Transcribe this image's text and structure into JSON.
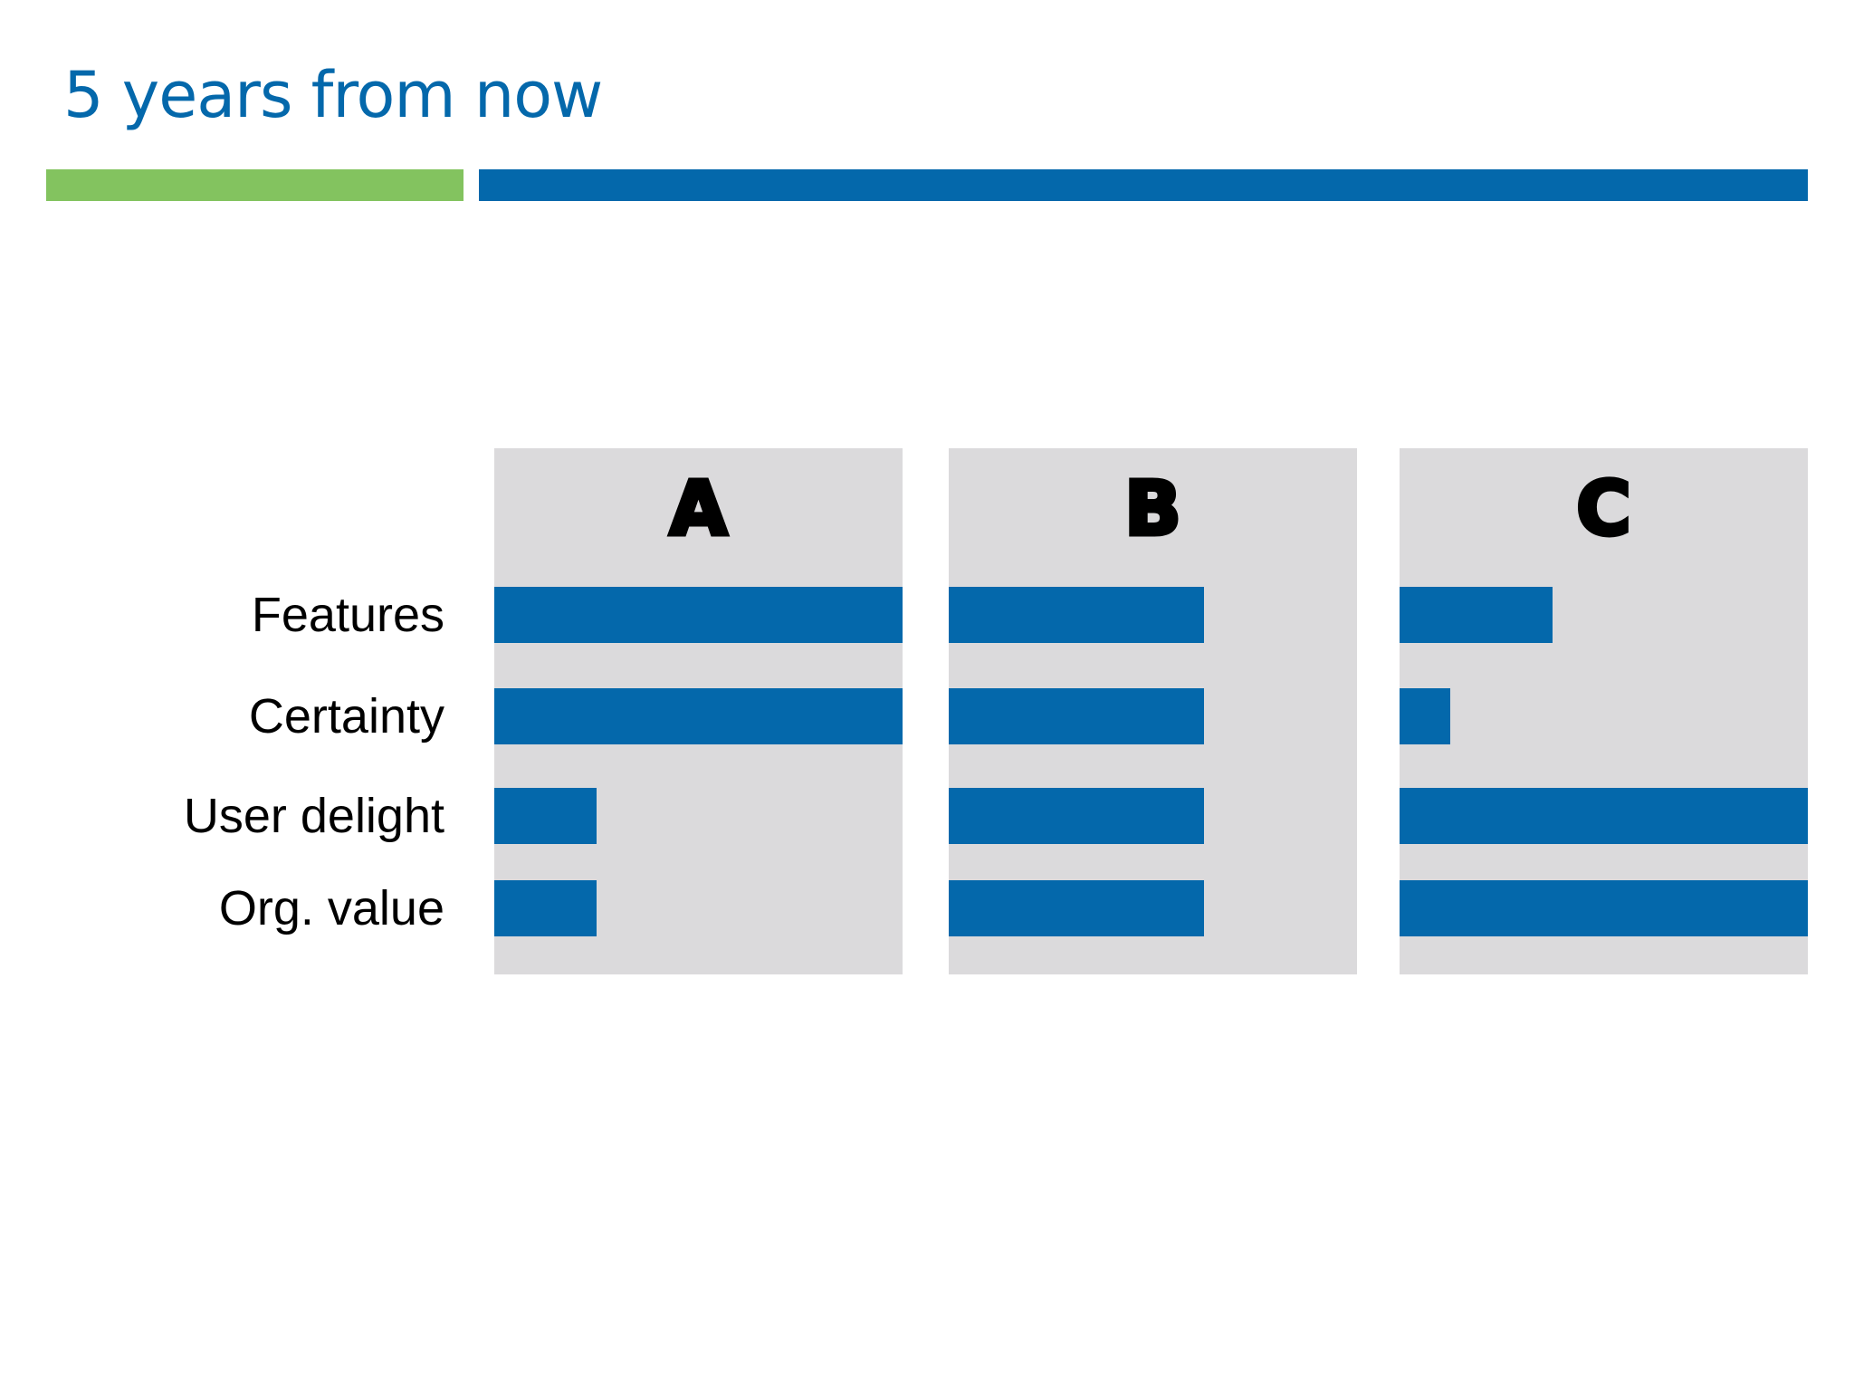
{
  "title": "5 years from now",
  "colors": {
    "title": "#0468ab",
    "accent_green": "#83c35f",
    "accent_blue": "#0468ab",
    "bar": "#0468ab",
    "panel_bg": "#dbdadc"
  },
  "chart_data": {
    "type": "bar",
    "orientation": "horizontal",
    "layout": "small-multiples",
    "categories": [
      "Features",
      "Certainty",
      "User delight",
      "Org. value"
    ],
    "panels": [
      {
        "name": "A",
        "values": [
          1.0,
          1.0,
          0.25,
          0.25
        ]
      },
      {
        "name": "B",
        "values": [
          0.625,
          0.625,
          0.625,
          0.625
        ]
      },
      {
        "name": "C",
        "values": [
          0.375,
          0.125,
          1.0,
          1.0
        ]
      }
    ],
    "xlim": [
      0,
      1
    ]
  }
}
